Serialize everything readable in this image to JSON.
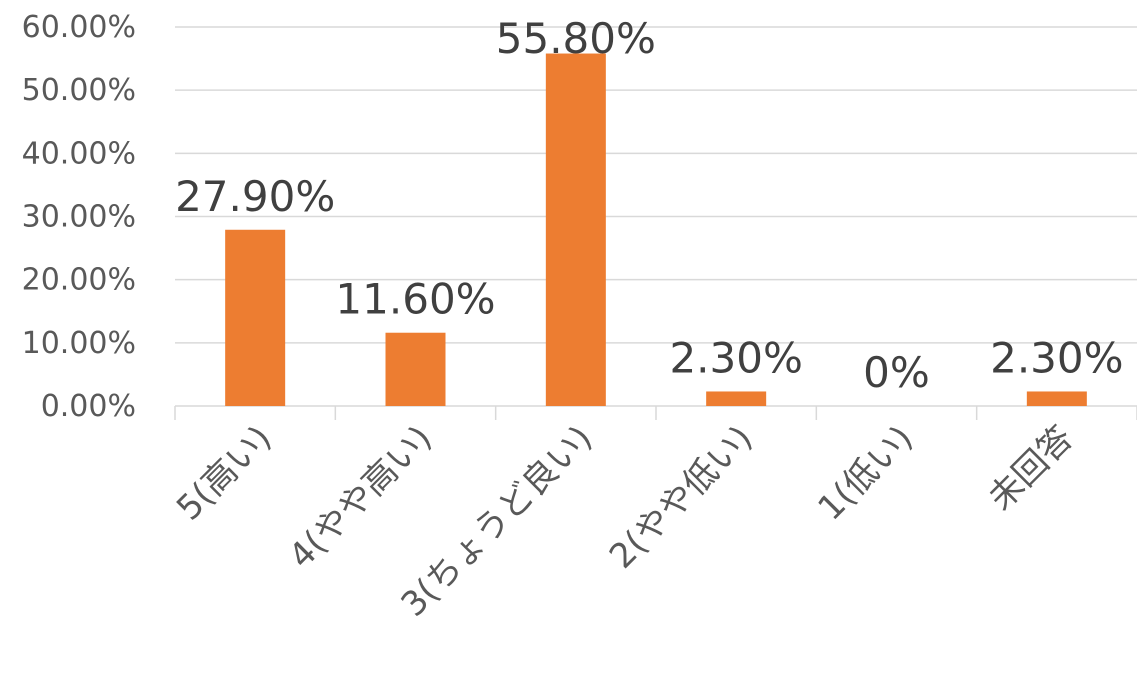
{
  "chart_data": {
    "type": "bar",
    "title": "",
    "xlabel": "",
    "ylabel": "",
    "categories": [
      "5(高い)",
      "4(やや高い)",
      "3(ちょうど良い)",
      "2(やや低い)",
      "1(低い)",
      "未回答"
    ],
    "values": [
      27.9,
      11.6,
      55.8,
      2.3,
      0,
      2.3
    ],
    "data_labels": [
      "27.90%",
      "11.60%",
      "55.80%",
      "2.30%",
      "0%",
      "2.30%"
    ],
    "ylim": [
      0,
      60
    ],
    "yticks": [
      0,
      10,
      20,
      30,
      40,
      50,
      60
    ],
    "ytick_labels": [
      "0.00%",
      "10.00%",
      "20.00%",
      "30.00%",
      "40.00%",
      "50.00%",
      "60.00%"
    ],
    "grid": true,
    "legend": "none",
    "colors": {
      "bar": "#ED7D31",
      "grid": "#D9D9D9",
      "text": "#595959"
    }
  }
}
